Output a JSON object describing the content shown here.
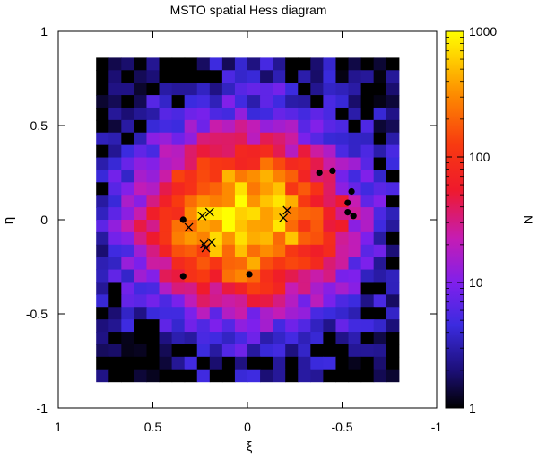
{
  "chart_data": {
    "type": "heatmap",
    "title": "MSTO spatial Hess diagram",
    "xlabel": "ξ",
    "ylabel": "η",
    "xlim": [
      1,
      -1
    ],
    "ylim": [
      -1,
      1
    ],
    "x_ticks": [
      1,
      0.5,
      0,
      -0.5,
      -1
    ],
    "y_ticks": [
      1,
      0.5,
      0,
      -0.5,
      -1
    ],
    "x_tick_labels": [
      "1",
      "0.5",
      "0",
      "-0.5",
      "-1"
    ],
    "y_tick_labels": [
      "1",
      "0.5",
      "0",
      "-0.5",
      "-1"
    ],
    "grid_extent": {
      "xi": [
        0.8,
        -0.8
      ],
      "eta": [
        -0.86,
        0.86
      ]
    },
    "grid_size": {
      "cols": 24,
      "rows": 26
    },
    "colorbar": {
      "label": "N",
      "scale": "log",
      "range": [
        1,
        1000
      ],
      "ticks": [
        1,
        10,
        100,
        1000
      ],
      "tick_labels": [
        "1",
        "10",
        "100",
        "1000"
      ]
    },
    "density_model": {
      "peak": 1000,
      "center": [
        0.02,
        0.0
      ],
      "sigma_xi": 0.2,
      "sigma_eta": 0.16,
      "core_fraction": 0.75,
      "halo_level": 15
    },
    "markers": {
      "dots": [
        [
          0.34,
          0.0
        ],
        [
          -0.38,
          0.25
        ],
        [
          -0.45,
          0.26
        ],
        [
          -0.55,
          0.15
        ],
        [
          -0.53,
          0.09
        ],
        [
          -0.53,
          0.04
        ],
        [
          -0.56,
          0.02
        ],
        [
          0.34,
          -0.3
        ],
        [
          -0.01,
          -0.29
        ]
      ],
      "crosses": [
        [
          0.31,
          -0.04
        ],
        [
          0.24,
          0.02
        ],
        [
          0.2,
          0.04
        ],
        [
          0.23,
          -0.13
        ],
        [
          0.22,
          -0.15
        ],
        [
          0.19,
          -0.12
        ],
        [
          -0.19,
          0.01
        ],
        [
          -0.21,
          0.05
        ]
      ]
    },
    "colors": {
      "frame": "#000000",
      "background": "#ffffff"
    }
  }
}
